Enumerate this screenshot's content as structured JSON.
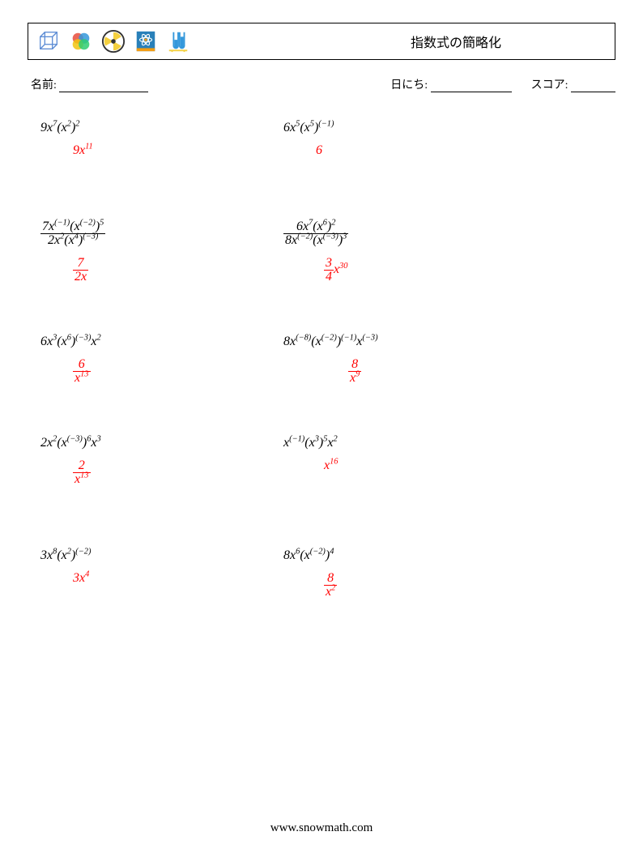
{
  "header": {
    "title": "指数式の簡略化",
    "icon_colors": {
      "cube_stroke": "#5b8bd4",
      "venn_red": "#e74c3c",
      "venn_blue": "#3498db",
      "venn_yellow": "#f1c40f",
      "venn_green": "#2ecc71",
      "rad_border": "#333333",
      "rad_yellow": "#f4d03f",
      "atom_bg": "#2980b9",
      "atom_accent": "#f39c12",
      "tubes_blue": "#3498db",
      "tubes_stand": "#f4d03f"
    }
  },
  "meta": {
    "name_label": "名前:",
    "name_blank_width": 110,
    "date_label": "日にち:",
    "date_blank_width": 100,
    "score_label": "スコア:",
    "score_blank_width": 55
  },
  "problems": [
    [
      {
        "q_html": "9<i>x</i><sup>7</sup>(<i>x</i><sup>2</sup>)<sup>2</sup>",
        "a_html": "9<i>x</i><sup>11</sup>"
      },
      {
        "q_html": "6<i>x</i><sup>5</sup>(<i>x</i><sup>5</sup>)<sup>(−1)</sup>",
        "a_html": "6"
      }
    ],
    [
      {
        "q_html": "<span class=\"frac\"><span class=\"num\">7<i>x</i><sup>(−1)</sup>(<i>x</i><sup>(−2)</sup>)<sup>5</sup></span><span class=\"den\">2<i>x</i><sup>2</sup>(<i>x</i><sup>4</sup>)<sup>(−3)</sup></span></span>",
        "a_html": "<span class=\"frac\"><span class=\"num\">7</span><span class=\"den\">2<i>x</i></span></span>",
        "a_ml": "40"
      },
      {
        "q_html": "<span class=\"frac\"><span class=\"num\">6<i>x</i><sup>7</sup>(<i>x</i><sup>6</sup>)<sup>2</sup></span><span class=\"den\">8<i>x</i><sup>(−2)</sup>(<i>x</i><sup>(−3)</sup>)<sup>3</sup></span></span>",
        "a_html": "<span class=\"frac\"><span class=\"num\">3</span><span class=\"den\">4</span></span><i>x</i><sup>30</sup>",
        "a_ml": "50"
      }
    ],
    [
      {
        "q_html": "6<i>x</i><sup>3</sup>(<i>x</i><sup>6</sup>)<sup>(−3)</sup><i>x</i><sup>2</sup>",
        "a_html": "<span class=\"frac\"><span class=\"num\">6</span><span class=\"den\"><i>x</i><sup>13</sup></span></span>"
      },
      {
        "q_html": "8<i>x</i><sup>(−8)</sup>(<i>x</i><sup>(−2)</sup>)<sup>(−1)</sup><i>x</i><sup>(−3)</sup>",
        "a_html": "<span class=\"frac\"><span class=\"num\">8</span><span class=\"den\"><i>x</i><sup>9</sup></span></span>",
        "a_ml": "80"
      }
    ],
    [
      {
        "q_html": "2<i>x</i><sup>2</sup>(<i>x</i><sup>(−3)</sup>)<sup>6</sup><i>x</i><sup>3</sup>",
        "a_html": "<span class=\"frac\"><span class=\"num\">2</span><span class=\"den\"><i>x</i><sup>13</sup></span></span>"
      },
      {
        "q_html": "<i>x</i><sup>(−1)</sup>(<i>x</i><sup>3</sup>)<sup>5</sup><i>x</i><sup>2</sup>",
        "a_html": "<i>x</i><sup>16</sup>",
        "a_ml": "50"
      }
    ],
    [
      {
        "q_html": "3<i>x</i><sup>8</sup>(<i>x</i><sup>2</sup>)<sup>(−2)</sup>",
        "a_html": "3<i>x</i><sup>4</sup>"
      },
      {
        "q_html": "8<i>x</i><sup>6</sup>(<i>x</i><sup>(−2)</sup>)<sup>4</sup>",
        "a_html": "<span class=\"frac\"><span class=\"num\">8</span><span class=\"den\"><i>x</i><sup>2</sup></span></span>",
        "a_ml": "50"
      }
    ]
  ],
  "footer": {
    "text": "www.snowmath.com"
  }
}
